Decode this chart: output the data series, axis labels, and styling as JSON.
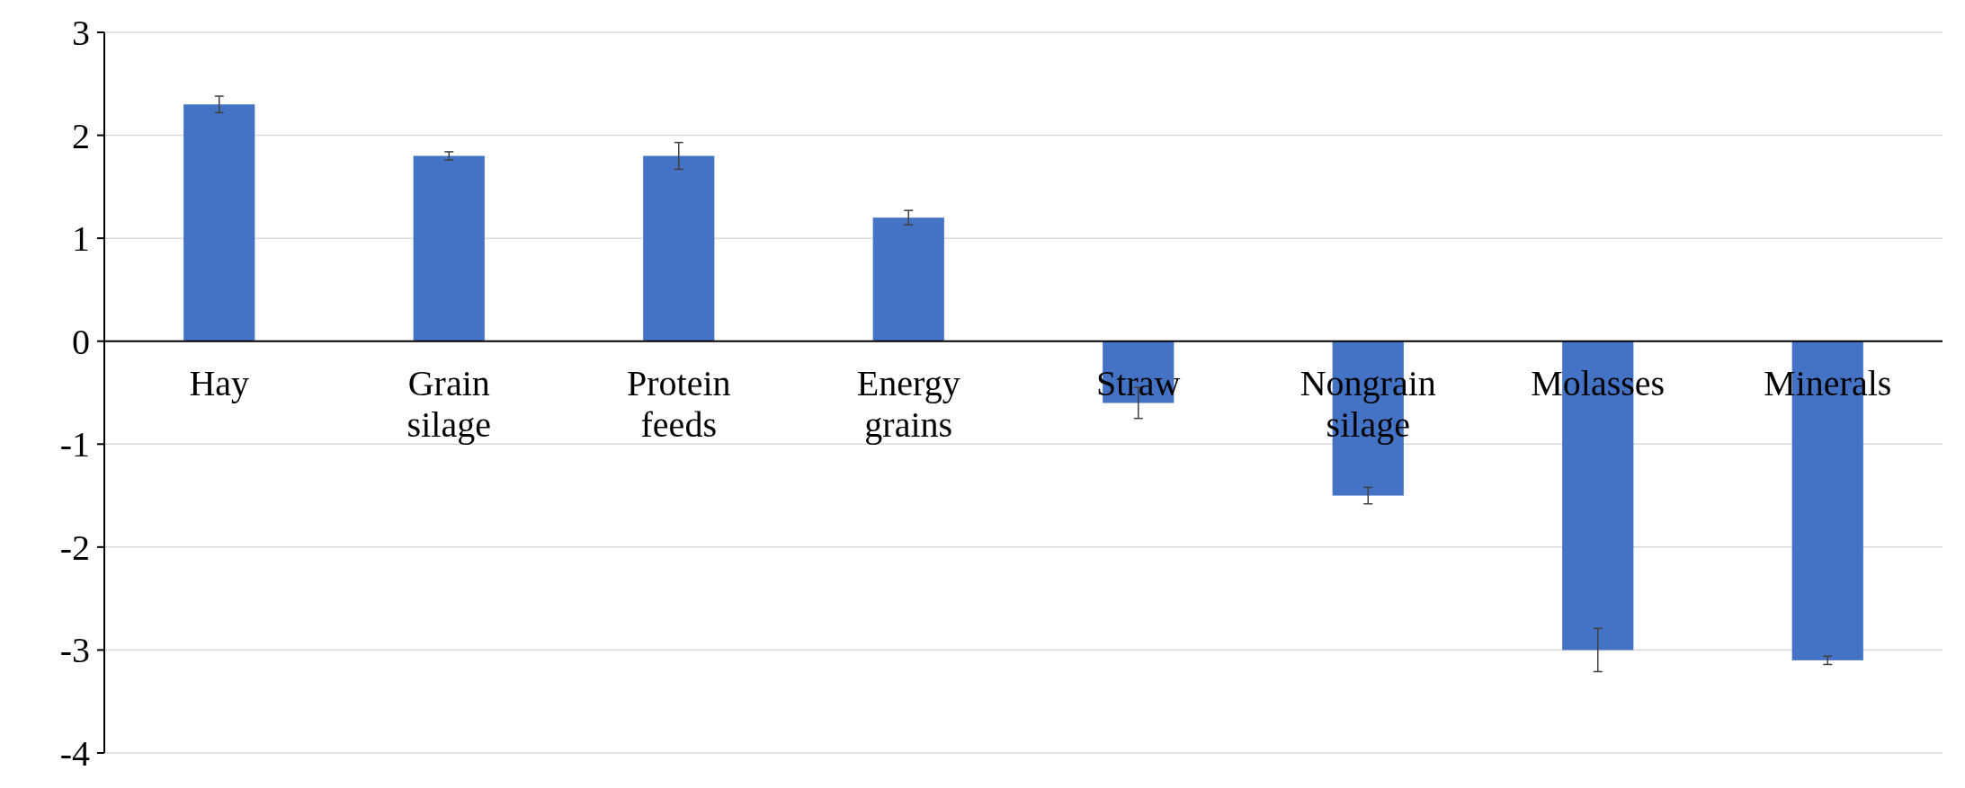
{
  "chart_data": {
    "type": "bar",
    "categories": [
      "Hay",
      "Grain silage",
      "Protein feeds",
      "Energy grains",
      "Straw",
      "Nongrain silage",
      "Molasses",
      "Minerals"
    ],
    "values": [
      2.3,
      1.8,
      1.8,
      1.2,
      -0.6,
      -1.5,
      -3.0,
      -3.1
    ],
    "errors": [
      0.08,
      0.04,
      0.13,
      0.07,
      0.15,
      0.08,
      0.21,
      0.04
    ],
    "color": "#4472c4",
    "ylim": [
      -4,
      3
    ],
    "yticks": [
      -4,
      -3,
      -2,
      -1,
      0,
      1,
      2,
      3
    ],
    "grid": "y"
  }
}
